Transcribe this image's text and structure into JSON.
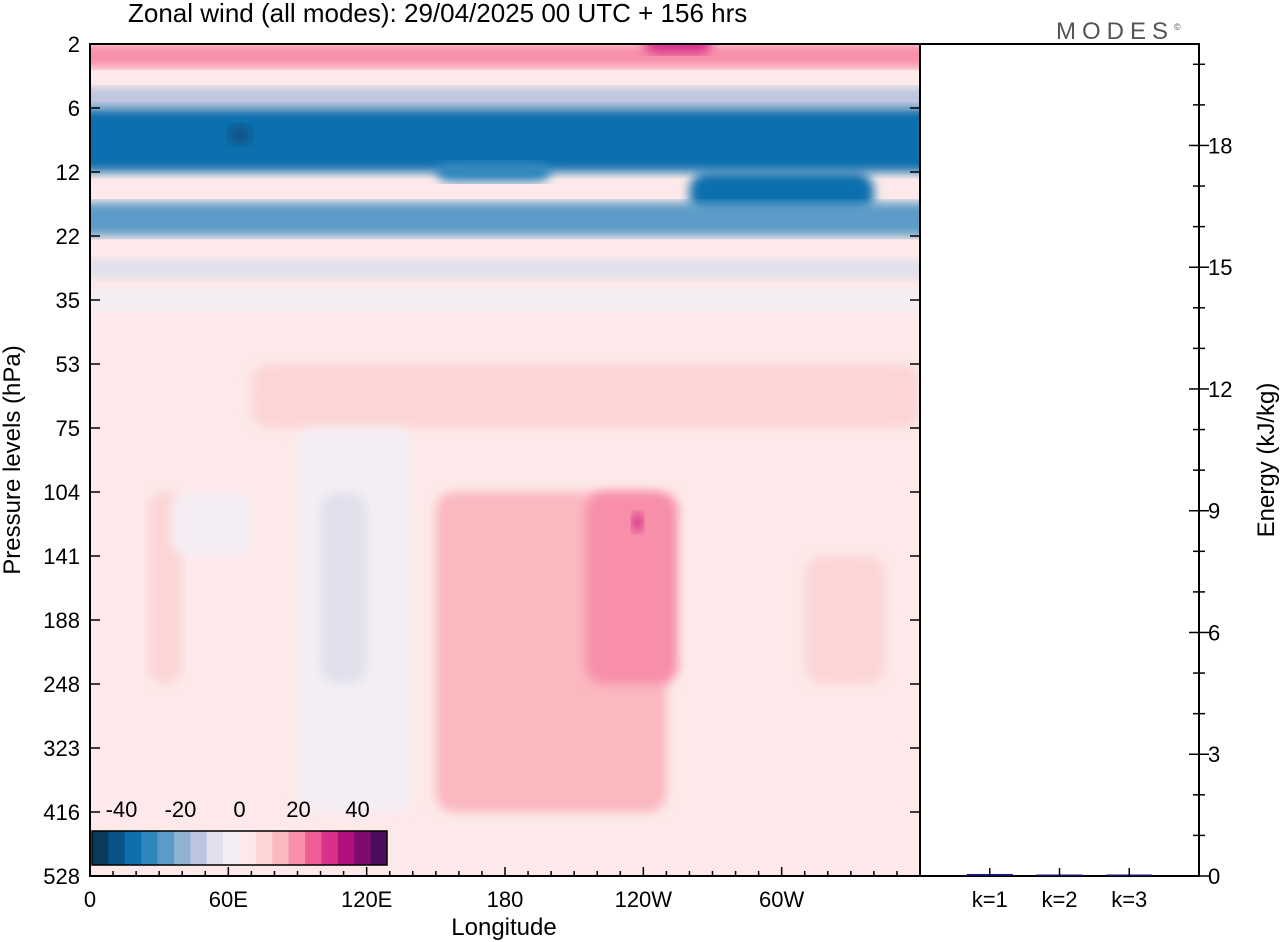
{
  "title": "Zonal wind (all modes):  29/04/2025  00 UTC  + 156 hrs",
  "logo": "MODES",
  "logo_mark": "©",
  "colors": {
    "scale": [
      "#0a3b5c",
      "#0b5287",
      "#0f6fae",
      "#2e86bd",
      "#5b9bc8",
      "#8fb1d3",
      "#bcc5df",
      "#e1e0ec",
      "#f4eef4",
      "#fde9e9",
      "#fcd5d6",
      "#fab8bf",
      "#f88faa",
      "#ef5d97",
      "#d9308a",
      "#b0107a",
      "#7e0b6f",
      "#4b0c5c"
    ]
  },
  "chart_data": [
    {
      "type": "heatmap",
      "xlabel": "Longitude",
      "ylabel": "Pressure levels (hPa)",
      "x_ticks": [
        "0",
        "60E",
        "120E",
        "180",
        "120W",
        "60W"
      ],
      "x_tick_values": [
        0,
        60,
        120,
        180,
        240,
        300
      ],
      "xlim": [
        0,
        360
      ],
      "y_ticks": [
        "2",
        "6",
        "12",
        "22",
        "35",
        "53",
        "75",
        "104",
        "141",
        "188",
        "248",
        "323",
        "416",
        "528"
      ],
      "colorbar": {
        "tick_labels": [
          "-40",
          "-20",
          "0",
          "20",
          "40"
        ],
        "tick_values": [
          -40,
          -20,
          0,
          20,
          40
        ],
        "range": [
          -50,
          50
        ]
      },
      "regions": [
        {
          "lon": [
            0,
            360
          ],
          "level": "2-3",
          "u": 20
        },
        {
          "lon": [
            240,
            270
          ],
          "level": "2",
          "u": 28
        },
        {
          "lon": [
            0,
            360
          ],
          "level": "4",
          "u": 2
        },
        {
          "lon": [
            0,
            360
          ],
          "level": "5",
          "u": -12
        },
        {
          "lon": [
            0,
            360
          ],
          "level": "6-12",
          "u": -35
        },
        {
          "lon": [
            60,
            70
          ],
          "level": "8",
          "u": -42
        },
        {
          "lon": [
            150,
            200
          ],
          "level": "12",
          "u": -30
        },
        {
          "lon": [
            260,
            340
          ],
          "level": "12-18",
          "u": -35
        },
        {
          "lon": [
            0,
            360
          ],
          "level": "16-22",
          "u": -25
        },
        {
          "lon": [
            0,
            360
          ],
          "level": "28",
          "u": -10
        },
        {
          "lon": [
            0,
            360
          ],
          "level": "35",
          "u": -2
        },
        {
          "lon": [
            0,
            360
          ],
          "level": "45-75",
          "u": 5
        },
        {
          "lon": [
            70,
            360
          ],
          "level": "53-75",
          "u": 10
        },
        {
          "lon": [
            150,
            250
          ],
          "level": "104-416",
          "u": 12
        },
        {
          "lon": [
            215,
            255
          ],
          "level": "104-248",
          "u": 22
        },
        {
          "lon": [
            235,
            240
          ],
          "level": "120",
          "u": 30
        },
        {
          "lon": [
            25,
            40
          ],
          "level": "104-248",
          "u": 8
        },
        {
          "lon": [
            35,
            70
          ],
          "level": "104-141",
          "u": -4
        },
        {
          "lon": [
            90,
            140
          ],
          "level": "75-416",
          "u": -5
        },
        {
          "lon": [
            100,
            120
          ],
          "level": "104-248",
          "u": -9
        },
        {
          "lon": [
            310,
            345
          ],
          "level": "141-248",
          "u": 8
        }
      ]
    },
    {
      "type": "bar",
      "categories": [
        "k=1",
        "k=2",
        "k=3"
      ],
      "values": [
        0.05,
        0.02,
        0.02
      ],
      "ylabel": "Energy (kJ/kg)",
      "ylim": [
        0,
        20.5
      ],
      "y_ticks": [
        "0",
        "3",
        "6",
        "9",
        "12",
        "15",
        "18"
      ],
      "y_tick_values": [
        0,
        3,
        6,
        9,
        12,
        15,
        18
      ],
      "bar_color": "#17176b"
    }
  ]
}
